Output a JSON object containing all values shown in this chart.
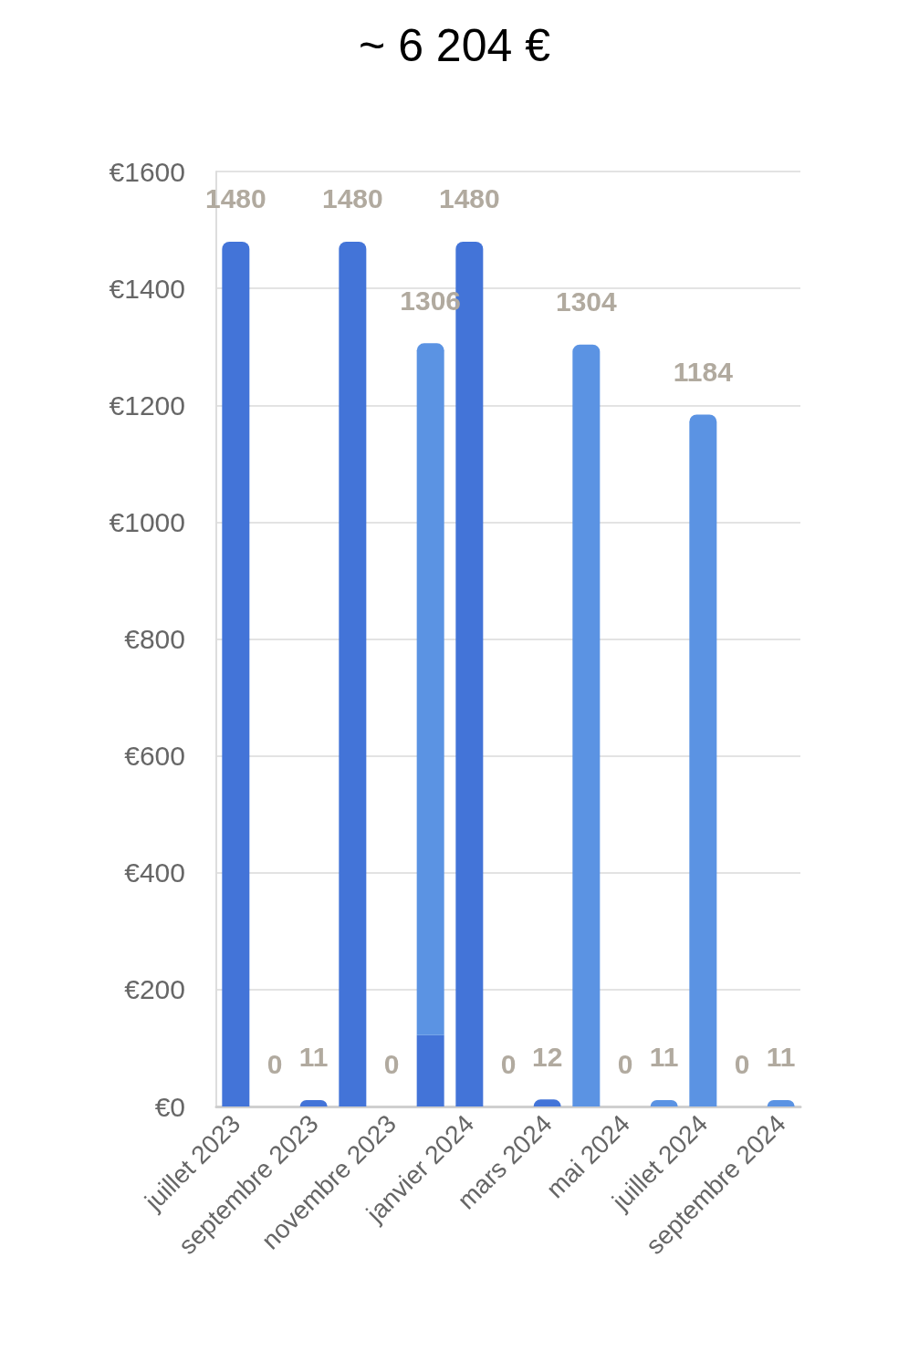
{
  "chart_data": {
    "type": "bar",
    "title": "~ 6 204 €",
    "categories": [
      "juillet 2023",
      null,
      "septembre 2023",
      null,
      "novembre 2023",
      null,
      "janvier 2024",
      null,
      "mars 2024",
      null,
      "mai 2024",
      null,
      "juillet 2024",
      null,
      "septembre 2024"
    ],
    "series": [
      {
        "color": "#4374d8",
        "values": [
          1480,
          null,
          11,
          1480,
          null,
          122,
          1480,
          null,
          12,
          null,
          null,
          null,
          null,
          null,
          null
        ]
      },
      {
        "color": "#5b93e3",
        "values": [
          null,
          null,
          null,
          null,
          null,
          1184,
          null,
          null,
          null,
          1304,
          null,
          11,
          1184,
          null,
          11
        ]
      }
    ],
    "stacked": true,
    "totals": [
      "1480",
      "0",
      "11",
      "1480",
      "0",
      "1306",
      "1480",
      "0",
      "12",
      "1304",
      "0",
      "11",
      "1184",
      "0",
      "11"
    ],
    "ylim": [
      0,
      1600
    ],
    "yticks": [
      {
        "value": 0,
        "label": "€0"
      },
      {
        "value": 200,
        "label": "€200"
      },
      {
        "value": 400,
        "label": "€400"
      },
      {
        "value": 600,
        "label": "€600"
      },
      {
        "value": 800,
        "label": "€800"
      },
      {
        "value": 1000,
        "label": "€1000"
      },
      {
        "value": 1200,
        "label": "€1200"
      },
      {
        "value": 1400,
        "label": "€1400"
      },
      {
        "value": 1600,
        "label": "€1600"
      }
    ],
    "grid": "y"
  }
}
